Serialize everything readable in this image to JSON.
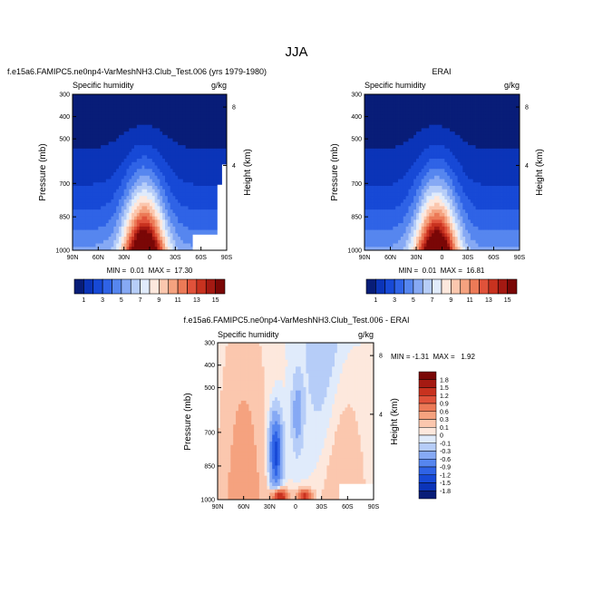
{
  "figure_title": "JJA",
  "colors": {
    "ocean_low": "#0d2fa8",
    "warm": "#c83018",
    "blank": "#ffffff"
  },
  "chart_data": [
    {
      "id": "model",
      "type": "heatmap",
      "title": "f.e15a6.FAMIPC5.ne0np4-VarMeshNH3.Club_Test.006 (yrs 1979-1980)",
      "left_label": "Specific humidity",
      "right_label": "g/kg",
      "xlabel": "",
      "ylabel": "Pressure (mb)",
      "ylabel_right": "Height (km)",
      "x_ticks": [
        "90N",
        "60N",
        "30N",
        "0",
        "30S",
        "60S",
        "90S"
      ],
      "xlim": [
        90,
        -90
      ],
      "y_ticks": [
        300,
        400,
        500,
        700,
        850,
        1000
      ],
      "ylim": [
        1000,
        300
      ],
      "height_ticks": [
        8,
        4
      ],
      "stats": "MIN =  0.01  MAX =  17.30",
      "min": 0.01,
      "max": 17.3,
      "colorbar": {
        "labels": [
          "1",
          "3",
          "5",
          "7",
          "9",
          "11",
          "13",
          "15"
        ],
        "colors": [
          "#081d78",
          "#0b34b8",
          "#1749d6",
          "#2f63e6",
          "#5686ef",
          "#86a9f4",
          "#b6cdf8",
          "#e0ebfb",
          "#fde8dd",
          "#fbc7ae",
          "#f5a27f",
          "#ec7a57",
          "#e0523a",
          "#c8321f",
          "#a41912",
          "#7a0706"
        ]
      }
    },
    {
      "id": "obs",
      "type": "heatmap",
      "title": "ERAI",
      "left_label": "Specific humidity",
      "right_label": "g/kg",
      "ylabel": "Pressure (mb)",
      "ylabel_right": "Height (km)",
      "x_ticks": [
        "90N",
        "60N",
        "30N",
        "0",
        "30S",
        "60S",
        "90S"
      ],
      "xlim": [
        90,
        -90
      ],
      "y_ticks": [
        300,
        400,
        500,
        700,
        850,
        1000
      ],
      "ylim": [
        1000,
        300
      ],
      "height_ticks": [
        8,
        4
      ],
      "stats": "MIN =  0.01  MAX =  16.81",
      "min": 0.01,
      "max": 16.81,
      "colorbar": {
        "labels": [
          "1",
          "3",
          "5",
          "7",
          "9",
          "11",
          "13",
          "15"
        ]
      }
    },
    {
      "id": "diff",
      "type": "heatmap",
      "title": "f.e15a6.FAMIPC5.ne0np4-VarMeshNH3.Club_Test.006 - ERAI",
      "left_label": "Specific humidity",
      "right_label": "g/kg",
      "ylabel": "Pressure (mb)",
      "ylabel_right": "Height (km)",
      "x_ticks": [
        "90N",
        "60N",
        "30N",
        "0",
        "30S",
        "60S",
        "90S"
      ],
      "xlim": [
        90,
        -90
      ],
      "y_ticks": [
        300,
        400,
        500,
        700,
        850,
        1000
      ],
      "ylim": [
        1000,
        300
      ],
      "height_ticks": [
        8,
        4
      ],
      "stats": "MIN = -1.31  MAX =   1.92",
      "min": -1.31,
      "max": 1.92,
      "colorbar": {
        "levels": [
          "1.8",
          "1.5",
          "1.2",
          "0.9",
          "0.6",
          "0.3",
          "0.1",
          "0",
          "-0.1",
          "-0.3",
          "-0.6",
          "-0.9",
          "-1.2",
          "-1.5",
          "-1.8"
        ],
        "colors": [
          "#7a0706",
          "#a51a12",
          "#c8321f",
          "#e0523a",
          "#ec7a57",
          "#f5a27f",
          "#fbc7ae",
          "#fde8dd",
          "#e0ebfb",
          "#b6cdf8",
          "#86a9f4",
          "#5686ef",
          "#2f63e6",
          "#1749d6",
          "#0b34b8",
          "#081d78"
        ]
      }
    }
  ]
}
